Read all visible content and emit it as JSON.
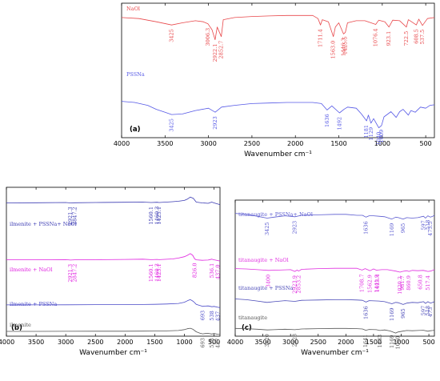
{
  "chart_data": [
    {
      "panel": "(a)",
      "type": "line",
      "xlabel": "Wavenumber cm⁻¹",
      "xlim": [
        4000,
        400
      ],
      "x_ticks": [
        4000,
        3500,
        3000,
        2500,
        2000,
        1500,
        1000,
        500
      ],
      "series": [
        {
          "name": "NaOl",
          "color": "#e8474a",
          "x": [
            4000,
            3800,
            3600,
            3425,
            3300,
            3150,
            3060,
            3006,
            2960,
            2924,
            2900,
            2853,
            2830,
            2700,
            2500,
            2300,
            2100,
            1950,
            1800,
            1740,
            1711,
            1690,
            1620,
            1563,
            1540,
            1500,
            1446,
            1425,
            1400,
            1300,
            1200,
            1076,
            1040,
            970,
            923,
            880,
            800,
            722,
            700,
            690,
            608,
            580,
            537,
            480,
            400
          ],
          "y": [
            0.88,
            0.86,
            0.8,
            0.74,
            0.78,
            0.82,
            0.8,
            0.76,
            0.65,
            0.46,
            0.7,
            0.52,
            0.84,
            0.88,
            0.9,
            0.91,
            0.92,
            0.92,
            0.92,
            0.86,
            0.74,
            0.84,
            0.8,
            0.52,
            0.7,
            0.78,
            0.57,
            0.6,
            0.78,
            0.82,
            0.82,
            0.75,
            0.83,
            0.8,
            0.7,
            0.83,
            0.82,
            0.7,
            0.84,
            0.83,
            0.74,
            0.85,
            0.73,
            0.86,
            0.88
          ],
          "annotations": [
            {
              "text": "3425",
              "x": 3425
            },
            {
              "text": "3006.3",
              "x": 3006
            },
            {
              "text": "2922.1",
              "x": 2924
            },
            {
              "text": "2852.7",
              "x": 2853
            },
            {
              "text": "1711.4",
              "x": 1711
            },
            {
              "text": "1563.0",
              "x": 1563
            },
            {
              "text": "1446.3",
              "x": 1446
            },
            {
              "text": "1425.5",
              "x": 1425
            },
            {
              "text": "1076.4",
              "x": 1076
            },
            {
              "text": "923.1",
              "x": 923
            },
            {
              "text": "722.5",
              "x": 722
            },
            {
              "text": "608.5",
              "x": 608
            },
            {
              "text": "537.5",
              "x": 537
            }
          ]
        },
        {
          "name": "PSSNa",
          "color": "#5558e6",
          "x": [
            4000,
            3850,
            3700,
            3600,
            3500,
            3425,
            3300,
            3150,
            3000,
            2923,
            2850,
            2700,
            2500,
            2300,
            2100,
            1950,
            1800,
            1700,
            1636,
            1580,
            1492,
            1440,
            1400,
            1300,
            1240,
            1181,
            1160,
            1130,
            1100,
            1040,
            1009,
            980,
            900,
            840,
            800,
            760,
            700,
            670,
            620,
            560,
            500,
            450,
            400
          ],
          "y": [
            0.52,
            0.5,
            0.45,
            0.38,
            0.33,
            0.29,
            0.3,
            0.36,
            0.4,
            0.33,
            0.42,
            0.45,
            0.48,
            0.49,
            0.5,
            0.5,
            0.5,
            0.48,
            0.37,
            0.44,
            0.32,
            0.38,
            0.42,
            0.4,
            0.3,
            0.18,
            0.28,
            0.14,
            0.22,
            0.06,
            0.1,
            0.25,
            0.34,
            0.24,
            0.34,
            0.38,
            0.28,
            0.36,
            0.33,
            0.42,
            0.4,
            0.45,
            0.46
          ],
          "annotations": [
            {
              "text": "3425",
              "x": 3425
            },
            {
              "text": "2923",
              "x": 2923
            },
            {
              "text": "1636",
              "x": 1636
            },
            {
              "text": "1492",
              "x": 1492
            },
            {
              "text": "1181",
              "x": 1181
            },
            {
              "text": "1129",
              "x": 1129
            },
            {
              "text": "1040",
              "x": 1040
            },
            {
              "text": "1009",
              "x": 1009
            }
          ]
        }
      ]
    },
    {
      "panel": "(b)",
      "type": "line",
      "xlabel": "Wavenumber cm⁻¹",
      "xlim": [
        4000,
        400
      ],
      "x_ticks": [
        4000,
        3500,
        3000,
        2500,
        2000,
        1500,
        1000,
        500
      ],
      "series": [
        {
          "name": "ilmenite + PSSNa+ NaOl",
          "color": "#3b3bb3",
          "x": [
            4000,
            3500,
            3000,
            2921,
            2847,
            2500,
            2000,
            1700,
            1560,
            1460,
            1425,
            1200,
            1100,
            1000,
            950,
            900,
            850,
            800,
            700,
            600,
            540,
            500,
            450,
            400
          ],
          "y": [
            0.74,
            0.745,
            0.75,
            0.74,
            0.745,
            0.75,
            0.755,
            0.76,
            0.75,
            0.755,
            0.75,
            0.77,
            0.78,
            0.8,
            0.83,
            0.88,
            0.85,
            0.76,
            0.74,
            0.73,
            0.76,
            0.74,
            0.72,
            0.7
          ],
          "annotations": [
            {
              "text": "2921.3",
              "x": 2921
            },
            {
              "text": "2847.2",
              "x": 2847
            },
            {
              "text": "1560.1",
              "x": 1560
            },
            {
              "text": "1460.3",
              "x": 1460
            },
            {
              "text": "1425.1",
              "x": 1425
            }
          ]
        },
        {
          "name": "ilmenite + NaOl",
          "color": "#e020e0",
          "x": [
            4000,
            3500,
            3000,
            2921,
            2847,
            2500,
            2000,
            1700,
            1560,
            1460,
            1425,
            1200,
            1100,
            1000,
            950,
            900,
            860,
            826,
            800,
            700,
            600,
            540,
            500,
            437,
            400
          ],
          "y": [
            0.56,
            0.56,
            0.565,
            0.555,
            0.56,
            0.565,
            0.57,
            0.575,
            0.565,
            0.57,
            0.565,
            0.58,
            0.6,
            0.63,
            0.66,
            0.7,
            0.66,
            0.58,
            0.56,
            0.55,
            0.555,
            0.575,
            0.56,
            0.545,
            0.53
          ],
          "annotations": [
            {
              "text": "2921.3",
              "x": 2921
            },
            {
              "text": "2847.2",
              "x": 2847
            },
            {
              "text": "1560.1",
              "x": 1560
            },
            {
              "text": "1460.3",
              "x": 1460
            },
            {
              "text": "1425.1",
              "x": 1425
            },
            {
              "text": "826.0",
              "x": 826
            },
            {
              "text": "536.1",
              "x": 536
            },
            {
              "text": "437.0",
              "x": 437
            }
          ]
        },
        {
          "name": "ilmenite + PSSNa",
          "color": "#4a4ac8",
          "x": [
            4000,
            3500,
            3000,
            2500,
            2000,
            1700,
            1500,
            1300,
            1100,
            1000,
            950,
            900,
            850,
            800,
            693,
            650,
            600,
            538,
            500,
            437,
            400
          ],
          "y": [
            0.38,
            0.38,
            0.385,
            0.39,
            0.39,
            0.395,
            0.4,
            0.41,
            0.43,
            0.47,
            0.52,
            0.56,
            0.5,
            0.4,
            0.33,
            0.34,
            0.345,
            0.32,
            0.33,
            0.3,
            0.29
          ],
          "annotations": [
            {
              "text": "693",
              "x": 693
            },
            {
              "text": "538",
              "x": 538
            },
            {
              "text": "437",
              "x": 437
            }
          ]
        },
        {
          "name": "ilmenite",
          "color": "#555555",
          "x": [
            4000,
            3500,
            3000,
            2500,
            2000,
            1700,
            1500,
            1300,
            1100,
            1000,
            950,
            900,
            860,
            800,
            740,
            693,
            650,
            600,
            538,
            500,
            437,
            400
          ],
          "y": [
            0.18,
            0.18,
            0.185,
            0.19,
            0.19,
            0.195,
            0.2,
            0.21,
            0.23,
            0.28,
            0.33,
            0.36,
            0.31,
            0.16,
            0.08,
            0.04,
            0.06,
            0.07,
            0.03,
            0.06,
            0.02,
            0.01
          ],
          "annotations": [
            {
              "text": "693",
              "x": 693
            },
            {
              "text": "538",
              "x": 538
            },
            {
              "text": "437",
              "x": 437
            }
          ]
        }
      ]
    },
    {
      "panel": "(c)",
      "type": "line",
      "xlabel": "Wavenumber cm⁻¹",
      "xlim": [
        4000,
        400
      ],
      "x_ticks": [
        4000,
        3500,
        3000,
        2500,
        2000,
        1500,
        1000,
        500
      ],
      "series": [
        {
          "name": "titanaugite + PSSNa+ NaOl",
          "color": "#5a5ad0",
          "x": [
            4000,
            3800,
            3600,
            3425,
            3300,
            3100,
            2923,
            2800,
            2500,
            2200,
            2000,
            1800,
            1700,
            1636,
            1580,
            1500,
            1400,
            1300,
            1169,
            1100,
            1050,
            965,
            900,
            800,
            700,
            597,
            560,
            518,
            473,
            430,
            400
          ],
          "y": [
            0.82,
            0.8,
            0.76,
            0.72,
            0.74,
            0.77,
            0.75,
            0.78,
            0.79,
            0.8,
            0.8,
            0.78,
            0.78,
            0.74,
            0.77,
            0.77,
            0.76,
            0.75,
            0.7,
            0.74,
            0.73,
            0.7,
            0.73,
            0.72,
            0.73,
            0.76,
            0.72,
            0.77,
            0.74,
            0.76,
            0.78
          ],
          "annotations": [
            {
              "text": "3425",
              "x": 3425
            },
            {
              "text": "2923",
              "x": 2923
            },
            {
              "text": "1636",
              "x": 1636
            },
            {
              "text": "1169",
              "x": 1169
            },
            {
              "text": "965",
              "x": 965
            },
            {
              "text": "597",
              "x": 597
            },
            {
              "text": "518",
              "x": 518
            },
            {
              "text": "473.5",
              "x": 473
            }
          ]
        },
        {
          "name": "titanaugite + NaOl",
          "color": "#e030e0",
          "x": [
            4000,
            3800,
            3600,
            3400,
            3200,
            3000,
            2923,
            2880,
            2853,
            2800,
            2500,
            2200,
            2000,
            1800,
            1708,
            1650,
            1563,
            1500,
            1441,
            1423,
            1350,
            1250,
            1100,
            1020,
            980,
            900,
            860,
            800,
            700,
            600,
            517,
            470,
            400
          ],
          "y": [
            0.6,
            0.59,
            0.57,
            0.55,
            0.56,
            0.57,
            0.52,
            0.56,
            0.53,
            0.58,
            0.6,
            0.61,
            0.61,
            0.61,
            0.56,
            0.6,
            0.54,
            0.59,
            0.55,
            0.56,
            0.57,
            0.57,
            0.53,
            0.5,
            0.52,
            0.54,
            0.52,
            0.55,
            0.54,
            0.55,
            0.52,
            0.53,
            0.57
          ],
          "annotations": [
            {
              "text": "3400",
              "x": 3400
            },
            {
              "text": "2923.9",
              "x": 2923
            },
            {
              "text": "2853.2",
              "x": 2853
            },
            {
              "text": "1708.7",
              "x": 1708
            },
            {
              "text": "1562.9",
              "x": 1563
            },
            {
              "text": "1441.9",
              "x": 1441
            },
            {
              "text": "1423.4",
              "x": 1423
            },
            {
              "text": "1020.2",
              "x": 1020
            },
            {
              "text": "981.7",
              "x": 981
            },
            {
              "text": "860.9",
              "x": 860
            },
            {
              "text": "650.8",
              "x": 650
            },
            {
              "text": "517.4",
              "x": 517
            }
          ]
        },
        {
          "name": "titanaugite + PSSNa",
          "color": "#4a4ab8",
          "x": [
            4000,
            3800,
            3600,
            3425,
            3300,
            3100,
            2923,
            2800,
            2500,
            2200,
            2000,
            1800,
            1700,
            1636,
            1580,
            1400,
            1300,
            1169,
            1100,
            1050,
            965,
            900,
            800,
            700,
            597,
            560,
            518,
            473,
            430,
            400
          ],
          "y": [
            0.5,
            0.48,
            0.44,
            0.4,
            0.42,
            0.45,
            0.43,
            0.46,
            0.47,
            0.48,
            0.48,
            0.47,
            0.46,
            0.41,
            0.45,
            0.44,
            0.42,
            0.36,
            0.4,
            0.39,
            0.34,
            0.38,
            0.4,
            0.39,
            0.42,
            0.37,
            0.42,
            0.38,
            0.4,
            0.42
          ],
          "annotations": [
            {
              "text": "1636",
              "x": 1636
            },
            {
              "text": "1169",
              "x": 1169
            },
            {
              "text": "965",
              "x": 965
            },
            {
              "text": "597",
              "x": 597
            },
            {
              "text": "518",
              "x": 518
            },
            {
              "text": "473",
              "x": 473
            }
          ]
        },
        {
          "name": "titanaugite",
          "color": "#555555",
          "x": [
            4000,
            3800,
            3600,
            3420,
            3300,
            3100,
            2923,
            2800,
            2500,
            2200,
            2000,
            1800,
            1700,
            1641,
            1580,
            1450,
            1383,
            1300,
            1200,
            1100,
            1060,
            980,
            900,
            800,
            700,
            600,
            518,
            473,
            430,
            400
          ],
          "y": [
            0.24,
            0.23,
            0.21,
            0.18,
            0.19,
            0.21,
            0.19,
            0.22,
            0.23,
            0.24,
            0.24,
            0.23,
            0.22,
            0.17,
            0.2,
            0.19,
            0.16,
            0.18,
            0.14,
            0.06,
            0.1,
            0.13,
            0.16,
            0.15,
            0.16,
            0.17,
            0.13,
            0.15,
            0.16,
            0.17
          ],
          "annotations": [
            {
              "text": "3420",
              "x": 3420
            },
            {
              "text": "2923",
              "x": 2923
            },
            {
              "text": "1641",
              "x": 1641
            },
            {
              "text": "1383",
              "x": 1383
            },
            {
              "text": "1169",
              "x": 1169
            },
            {
              "text": "1060",
              "x": 1060
            }
          ]
        }
      ]
    }
  ]
}
